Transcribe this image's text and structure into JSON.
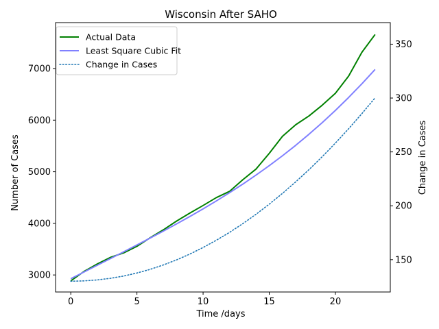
{
  "chart_data": {
    "type": "line",
    "title": "Wisconsin After SAHO",
    "xlabel": "Time /days",
    "ylabel": "Number of Cases",
    "y2label": "Change in Cases",
    "xlim": [
      -1.15,
      24.15
    ],
    "ylim": [
      2670,
      7890
    ],
    "y2lim": [
      120,
      370
    ],
    "xticks": [
      0,
      5,
      10,
      15,
      20
    ],
    "yticks": [
      3000,
      4000,
      5000,
      6000,
      7000
    ],
    "y2ticks": [
      150,
      200,
      250,
      300,
      350
    ],
    "x": [
      0,
      1,
      2,
      3,
      4,
      5,
      6,
      7,
      8,
      9,
      10,
      11,
      12,
      13,
      14,
      15,
      16,
      17,
      18,
      19,
      20,
      21,
      22,
      23
    ],
    "series": [
      {
        "name": "Actual Data",
        "axis": "left",
        "color": "#008000",
        "style": "solid",
        "values": [
          2885,
          3068,
          3213,
          3341,
          3428,
          3555,
          3721,
          3875,
          4045,
          4199,
          4346,
          4499,
          4620,
          4845,
          5052,
          5356,
          5687,
          5911,
          6081,
          6289,
          6520,
          6854,
          7314,
          7660
        ]
      },
      {
        "name": "Least Square Cubic Fit",
        "axis": "left",
        "color": "#8080ff",
        "style": "solid",
        "values": [
          2927,
          3057,
          3188,
          3318,
          3449,
          3581,
          3715,
          3851,
          3990,
          4133,
          4281,
          4434,
          4594,
          4760,
          4935,
          5118,
          5310,
          5512,
          5726,
          5951,
          6188,
          6439,
          6704,
          6983
        ]
      },
      {
        "name": "Change in Cases",
        "axis": "right",
        "color": "#1f77b4",
        "style": "dotted",
        "values": [
          130,
          130.3,
          131.2,
          132.7,
          134.8,
          137.6,
          141.0,
          145.1,
          149.8,
          155.2,
          161.3,
          168.0,
          175.3,
          183.4,
          192.1,
          201.5,
          211.5,
          222.2,
          233.5,
          245.5,
          258.2,
          271.5,
          285.5,
          300.2
        ]
      }
    ],
    "legend": {
      "position": "top-left",
      "entries": [
        "Actual Data",
        "Least Square Cubic Fit",
        "Change in Cases"
      ]
    },
    "grid": false
  }
}
